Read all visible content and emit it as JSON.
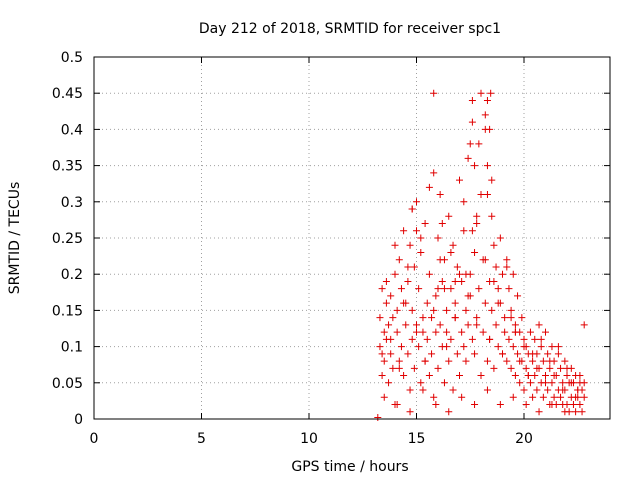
{
  "chart_data": {
    "type": "scatter",
    "title": "Day 212 of 2018, SRMTID for receiver spc1",
    "xlabel": "GPS time / hours",
    "ylabel": "SRMTID / TECUs",
    "xlim": [
      0,
      24
    ],
    "ylim": [
      0,
      0.5
    ],
    "grid": true,
    "marker": "+",
    "series_color": "#e00000",
    "x_ticks": [
      0,
      5,
      10,
      15,
      20
    ],
    "x_tick_labels": [
      "0",
      "5",
      "10",
      "15",
      "20"
    ],
    "y_ticks": [
      0,
      0.05,
      0.1,
      0.15,
      0.2,
      0.25,
      0.3,
      0.35,
      0.4,
      0.45,
      0.5
    ],
    "y_tick_labels": [
      "0",
      "0.05",
      "0.1",
      "0.15",
      "0.2",
      "0.25",
      "0.3",
      "0.35",
      "0.4",
      "0.45",
      "0.5"
    ],
    "series": [
      {
        "name": "spc1",
        "x": [
          13.2,
          13.3,
          13.3,
          13.4,
          13.4,
          13.5,
          13.5,
          13.6,
          13.6,
          13.7,
          13.7,
          13.8,
          13.8,
          13.9,
          13.9,
          14.0,
          14.0,
          14.1,
          14.1,
          14.2,
          14.2,
          14.3,
          14.3,
          14.4,
          14.4,
          14.5,
          14.5,
          14.6,
          14.6,
          14.7,
          14.7,
          14.8,
          14.8,
          14.9,
          14.9,
          15.0,
          15.0,
          15.1,
          15.1,
          15.2,
          15.2,
          15.3,
          15.3,
          15.4,
          15.4,
          15.5,
          15.5,
          15.6,
          15.6,
          15.7,
          15.7,
          15.8,
          15.8,
          15.9,
          15.9,
          16.0,
          16.0,
          16.1,
          16.1,
          16.2,
          16.2,
          16.3,
          16.3,
          16.4,
          16.4,
          16.5,
          16.5,
          16.6,
          16.6,
          16.7,
          16.7,
          16.8,
          16.8,
          16.9,
          16.9,
          17.0,
          17.0,
          17.1,
          17.1,
          17.2,
          17.2,
          17.3,
          17.3,
          17.4,
          17.4,
          17.5,
          17.5,
          17.6,
          17.6,
          17.7,
          17.7,
          17.8,
          17.8,
          17.9,
          17.9,
          18.0,
          18.0,
          18.1,
          18.1,
          18.2,
          18.2,
          18.3,
          18.3,
          18.4,
          18.4,
          18.5,
          18.5,
          18.6,
          18.6,
          18.7,
          18.7,
          18.8,
          18.8,
          18.9,
          18.9,
          19.0,
          19.0,
          19.1,
          19.1,
          19.2,
          19.2,
          19.3,
          19.3,
          19.4,
          19.4,
          19.5,
          19.5,
          19.6,
          19.6,
          19.7,
          19.7,
          19.8,
          19.8,
          19.9,
          19.9,
          20.0,
          20.0,
          20.1,
          20.1,
          20.2,
          20.2,
          20.3,
          20.3,
          20.4,
          20.4,
          20.5,
          20.5,
          20.6,
          20.6,
          20.7,
          20.7,
          20.8,
          20.8,
          20.9,
          20.9,
          21.0,
          21.0,
          21.1,
          21.1,
          21.2,
          21.2,
          21.3,
          21.3,
          21.4,
          21.4,
          21.5,
          21.5,
          21.6,
          21.6,
          21.7,
          21.7,
          21.8,
          21.8,
          21.9,
          21.9,
          22.0,
          22.0,
          22.1,
          22.1,
          22.2,
          22.2,
          22.3,
          22.3,
          22.4,
          22.4,
          22.5,
          22.5,
          22.6,
          22.6,
          22.7,
          22.7,
          22.8,
          22.8,
          13.4,
          13.6,
          13.8,
          14.0,
          14.2,
          14.4,
          14.6,
          14.8,
          15.0,
          15.2,
          15.4,
          15.6,
          15.8,
          16.0,
          16.2,
          16.4,
          16.6,
          16.8,
          17.0,
          17.2,
          17.4,
          17.6,
          17.8,
          18.0,
          18.2,
          18.4,
          18.6,
          18.8,
          19.0,
          19.2,
          19.4,
          19.6,
          19.8,
          20.0,
          20.2,
          20.4,
          20.6,
          20.8,
          21.0,
          21.2,
          21.4,
          21.6,
          21.8,
          22.0,
          22.2,
          22.4,
          22.6,
          22.8,
          13.5,
          14.1,
          14.7,
          15.3,
          15.9,
          16.5,
          17.1,
          17.7,
          18.3,
          18.9,
          19.5,
          20.1,
          20.7,
          21.3,
          21.9,
          22.5,
          17.5,
          17.6,
          17.7,
          18.2,
          18.3,
          18.4,
          18.45,
          15.8,
          16.8,
          17.8,
          18.3,
          18.5,
          14.8,
          15.0,
          16.1,
          16.3,
          17.3,
          19.6
        ],
        "y": [
          0.002,
          0.1,
          0.14,
          0.06,
          0.18,
          0.12,
          0.08,
          0.16,
          0.11,
          0.05,
          0.13,
          0.09,
          0.17,
          0.07,
          0.14,
          0.02,
          0.2,
          0.12,
          0.15,
          0.08,
          0.22,
          0.1,
          0.18,
          0.06,
          0.26,
          0.13,
          0.16,
          0.09,
          0.19,
          0.04,
          0.24,
          0.11,
          0.15,
          0.07,
          0.21,
          0.13,
          0.3,
          0.1,
          0.18,
          0.05,
          0.23,
          0.14,
          0.12,
          0.08,
          0.27,
          0.16,
          0.11,
          0.06,
          0.2,
          0.09,
          0.14,
          0.03,
          0.34,
          0.12,
          0.17,
          0.07,
          0.25,
          0.13,
          0.31,
          0.1,
          0.19,
          0.05,
          0.22,
          0.15,
          0.12,
          0.08,
          0.28,
          0.18,
          0.11,
          0.04,
          0.24,
          0.14,
          0.16,
          0.09,
          0.21,
          0.06,
          0.33,
          0.12,
          0.19,
          0.1,
          0.26,
          0.15,
          0.08,
          0.13,
          0.36,
          0.2,
          0.17,
          0.11,
          0.44,
          0.23,
          0.09,
          0.27,
          0.14,
          0.38,
          0.18,
          0.06,
          0.31,
          0.12,
          0.22,
          0.16,
          0.4,
          0.08,
          0.35,
          0.19,
          0.11,
          0.28,
          0.15,
          0.24,
          0.07,
          0.21,
          0.13,
          0.18,
          0.1,
          0.25,
          0.16,
          0.09,
          0.2,
          0.14,
          0.12,
          0.22,
          0.08,
          0.18,
          0.11,
          0.15,
          0.07,
          0.2,
          0.1,
          0.13,
          0.06,
          0.17,
          0.09,
          0.12,
          0.05,
          0.14,
          0.08,
          0.11,
          0.04,
          0.1,
          0.07,
          0.09,
          0.06,
          0.12,
          0.05,
          0.08,
          0.03,
          0.11,
          0.06,
          0.09,
          0.04,
          0.13,
          0.07,
          0.1,
          0.05,
          0.08,
          0.03,
          0.12,
          0.06,
          0.09,
          0.04,
          0.07,
          0.02,
          0.1,
          0.05,
          0.08,
          0.03,
          0.06,
          0.02,
          0.09,
          0.04,
          0.07,
          0.03,
          0.05,
          0.02,
          0.08,
          0.04,
          0.06,
          0.02,
          0.05,
          0.01,
          0.07,
          0.03,
          0.05,
          0.02,
          0.06,
          0.01,
          0.04,
          0.03,
          0.05,
          0.02,
          0.04,
          0.01,
          0.03,
          0.13,
          0.09,
          0.19,
          0.11,
          0.24,
          0.07,
          0.16,
          0.21,
          0.29,
          0.12,
          0.25,
          0.08,
          0.32,
          0.15,
          0.18,
          0.27,
          0.1,
          0.23,
          0.14,
          0.2,
          0.3,
          0.17,
          0.26,
          0.13,
          0.45,
          0.22,
          0.11,
          0.19,
          0.16,
          0.09,
          0.21,
          0.14,
          0.12,
          0.08,
          0.1,
          0.06,
          0.09,
          0.07,
          0.11,
          0.05,
          0.08,
          0.06,
          0.1,
          0.04,
          0.07,
          0.05,
          0.03,
          0.06,
          0.05,
          0.03,
          0.02,
          0.01,
          0.04,
          0.02,
          0.01,
          0.03,
          0.02,
          0.04,
          0.02,
          0.03,
          0.02,
          0.01,
          0.02,
          0.01,
          0.04,
          0.38,
          0.41,
          0.35,
          0.42,
          0.44,
          0.4,
          0.45,
          0.45,
          0.19,
          0.28,
          0.31,
          0.33,
          0.29,
          0.26,
          0.22,
          0.18,
          0.2,
          0.12
        ]
      }
    ]
  }
}
